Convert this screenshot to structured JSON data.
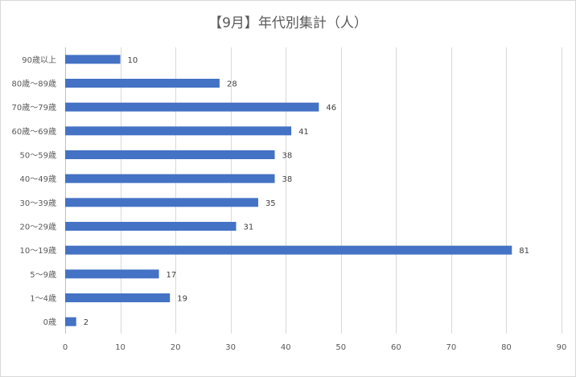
{
  "chart_data": {
    "type": "bar",
    "orientation": "horizontal",
    "title": "【9月】年代別集計（人）",
    "xlabel": "",
    "ylabel": "",
    "categories": [
      "90歳以上",
      "80歳〜89歳",
      "70歳〜79歳",
      "60歳〜69歳",
      "50〜59歳",
      "40〜49歳",
      "30〜39歳",
      "20〜29歳",
      "10〜19歳",
      "5〜9歳",
      "1〜4歳",
      "0歳"
    ],
    "values": [
      10,
      28,
      46,
      41,
      38,
      38,
      35,
      31,
      81,
      17,
      19,
      2
    ],
    "xlim": [
      0,
      90
    ],
    "xticks": [
      0,
      10,
      20,
      30,
      40,
      50,
      60,
      70,
      80,
      90
    ],
    "grid": true,
    "legend": "none",
    "bar_color": "#4472c4",
    "data_labels": true
  }
}
